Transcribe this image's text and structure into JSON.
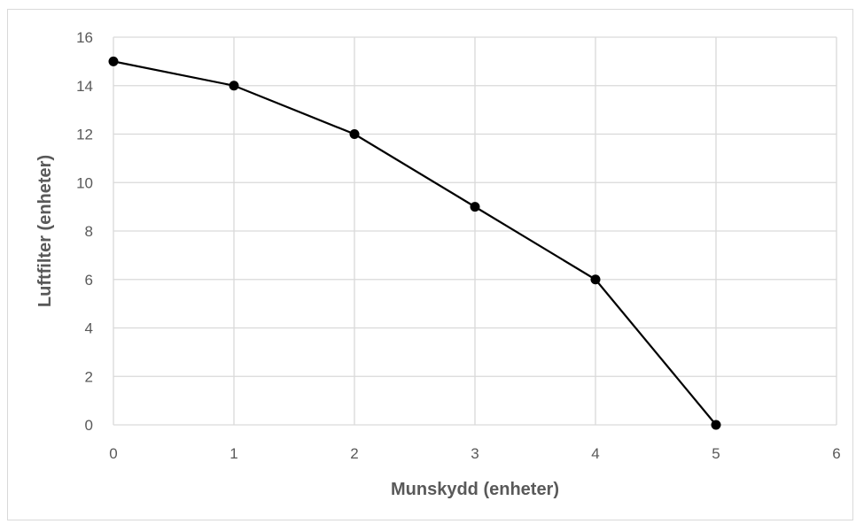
{
  "chart_data": {
    "type": "line",
    "title": "",
    "xlabel": "Munskydd (enheter)",
    "ylabel": "Luftfilter (enheter)",
    "xlim": [
      0,
      6
    ],
    "ylim": [
      0,
      16
    ],
    "xticks": [
      "0",
      "1",
      "2",
      "3",
      "4",
      "5",
      "6"
    ],
    "yticks": [
      "0",
      "2",
      "4",
      "6",
      "8",
      "10",
      "12",
      "14",
      "16"
    ],
    "grid": true,
    "legend": "none",
    "series": [
      {
        "x": [
          0,
          1,
          2,
          3,
          4,
          5
        ],
        "y": [
          15,
          14,
          12,
          9,
          6,
          0
        ],
        "color": "#000000",
        "marker": "circle"
      }
    ]
  }
}
